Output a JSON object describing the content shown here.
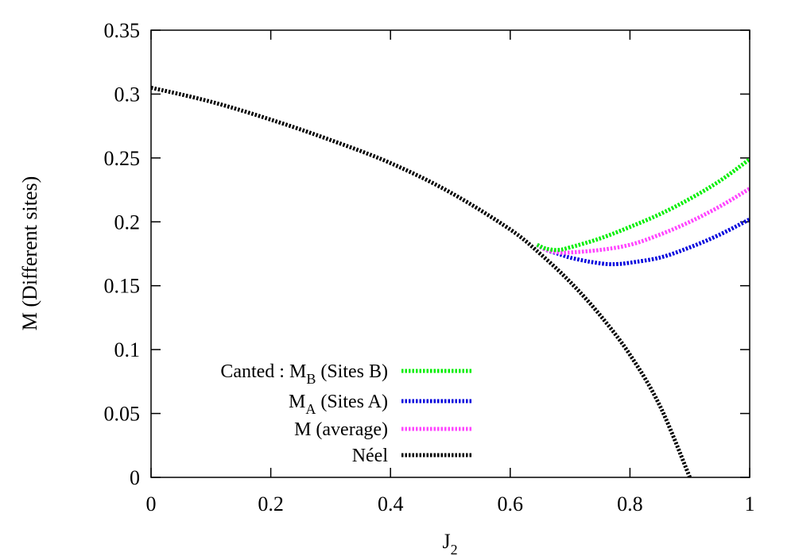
{
  "chart_data": {
    "type": "line",
    "title": "",
    "xlabel": {
      "base": "J",
      "sub": "2"
    },
    "ylabel": "M (Different sites)",
    "xlim": [
      0,
      1
    ],
    "ylim": [
      0,
      0.35
    ],
    "x_ticks": [
      "0",
      "0.2",
      "0.4",
      "0.6",
      "0.8",
      "1"
    ],
    "y_ticks": [
      "0",
      "0.05",
      "0.1",
      "0.15",
      "0.2",
      "0.25",
      "0.3",
      "0.35"
    ],
    "grid": false,
    "legend_position": "bottom-left",
    "series": [
      {
        "key": "mb",
        "legend": {
          "prefix": "Canted : ",
          "base": "M",
          "sub": "B",
          "suffix": " (Sites B)"
        },
        "color": "#00ee00",
        "style": "dotted",
        "x": [
          0.645,
          0.66,
          0.68,
          0.7,
          0.75,
          0.8,
          0.85,
          0.9,
          0.95,
          1.0
        ],
        "y": [
          0.182,
          0.179,
          0.178,
          0.18,
          0.187,
          0.196,
          0.206,
          0.218,
          0.232,
          0.249
        ]
      },
      {
        "key": "ma",
        "legend": {
          "prefix": "",
          "base": "M",
          "sub": "A",
          "suffix": " (Sites A)"
        },
        "color": "#0000dd",
        "style": "dotted",
        "x": [
          0.645,
          0.66,
          0.68,
          0.7,
          0.73,
          0.76,
          0.78,
          0.8,
          0.85,
          0.9,
          0.95,
          1.0
        ],
        "y": [
          0.182,
          0.178,
          0.175,
          0.172,
          0.169,
          0.167,
          0.167,
          0.168,
          0.172,
          0.18,
          0.19,
          0.202
        ]
      },
      {
        "key": "mavg",
        "legend": {
          "prefix": "",
          "base": "M (average)",
          "sub": "",
          "suffix": ""
        },
        "color": "#ff44ff",
        "style": "dotted",
        "x": [
          0.645,
          0.66,
          0.68,
          0.7,
          0.75,
          0.8,
          0.85,
          0.9,
          0.95,
          1.0
        ],
        "y": [
          0.182,
          0.178,
          0.176,
          0.176,
          0.178,
          0.182,
          0.19,
          0.2,
          0.212,
          0.226
        ]
      },
      {
        "key": "neel",
        "legend": {
          "prefix": "",
          "base": "Néel",
          "sub": "",
          "suffix": ""
        },
        "color": "#000000",
        "style": "dotted",
        "x": [
          0.0,
          0.1,
          0.2,
          0.3,
          0.4,
          0.5,
          0.6,
          0.65,
          0.7,
          0.75,
          0.8,
          0.85,
          0.9
        ],
        "y": [
          0.305,
          0.294,
          0.28,
          0.264,
          0.246,
          0.223,
          0.194,
          0.175,
          0.153,
          0.127,
          0.096,
          0.056,
          0.0
        ]
      }
    ]
  }
}
